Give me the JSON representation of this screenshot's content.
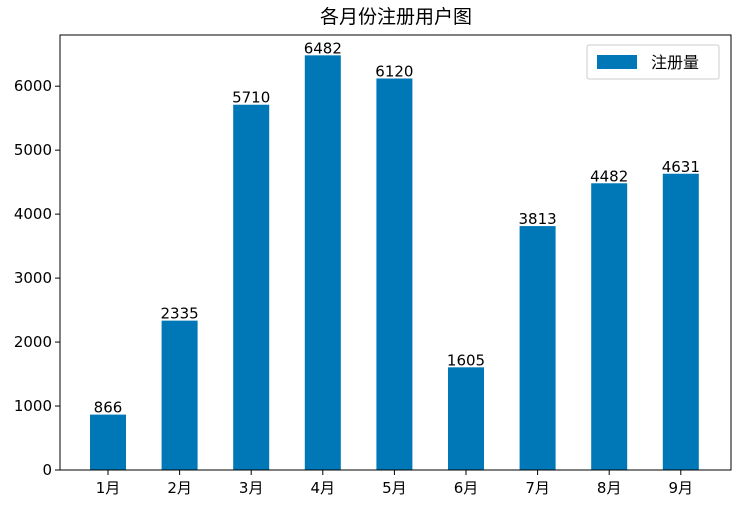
{
  "chart_data": {
    "type": "bar",
    "title": "各月份注册用户图",
    "xlabel": "",
    "ylabel": "",
    "categories": [
      "1月",
      "2月",
      "3月",
      "4月",
      "5月",
      "6月",
      "7月",
      "8月",
      "9月"
    ],
    "series": [
      {
        "name": "注册量",
        "values": [
          866,
          2335,
          5710,
          6482,
          6120,
          1605,
          3813,
          4482,
          4631
        ],
        "color": "#0077b6"
      }
    ],
    "data_labels": [
      "866",
      "2335",
      "5710",
      "6482",
      "6120",
      "1605",
      "3813",
      "4482",
      "4631"
    ],
    "ylim": [
      0,
      6800
    ],
    "yticks": [
      0,
      1000,
      2000,
      3000,
      4000,
      5000,
      6000
    ],
    "ytick_labels": [
      "0",
      "1000",
      "2000",
      "3000",
      "4000",
      "5000",
      "6000"
    ],
    "grid": false,
    "legend_position": "top-right"
  }
}
